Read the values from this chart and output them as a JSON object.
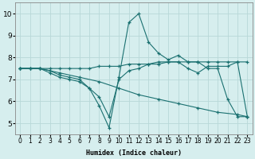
{
  "xlabel": "Humidex (Indice chaleur)",
  "ylabel": "",
  "xlim": [
    -0.5,
    23.5
  ],
  "ylim": [
    4.5,
    10.5
  ],
  "xticks": [
    0,
    1,
    2,
    3,
    4,
    5,
    6,
    7,
    8,
    9,
    10,
    11,
    12,
    13,
    14,
    15,
    16,
    17,
    18,
    19,
    20,
    21,
    22,
    23
  ],
  "yticks": [
    5,
    6,
    7,
    8,
    9,
    10
  ],
  "bg_color": "#d6eeee",
  "line_color": "#1a7070",
  "grid_color": "#b8d8d8",
  "lines": [
    {
      "x": [
        0,
        1,
        2,
        3,
        4,
        5,
        6,
        7,
        8,
        9,
        10,
        11,
        12,
        13,
        14,
        15,
        16,
        17,
        18,
        19,
        20,
        21,
        22,
        23
      ],
      "y": [
        7.5,
        7.5,
        7.5,
        7.4,
        7.2,
        7.1,
        7.0,
        6.6,
        5.8,
        4.8,
        7.1,
        9.6,
        10.0,
        8.7,
        8.2,
        7.9,
        8.1,
        7.8,
        7.8,
        7.5,
        7.5,
        6.1,
        5.3,
        5.3
      ]
    },
    {
      "x": [
        0,
        1,
        2,
        3,
        4,
        5,
        6,
        7,
        8,
        9,
        10,
        11,
        12,
        13,
        14,
        15,
        16,
        17,
        18,
        19,
        20,
        21,
        22,
        23
      ],
      "y": [
        7.5,
        7.5,
        7.5,
        7.5,
        7.5,
        7.5,
        7.5,
        7.5,
        7.6,
        7.6,
        7.6,
        7.7,
        7.7,
        7.7,
        7.8,
        7.8,
        7.8,
        7.8,
        7.8,
        7.8,
        7.8,
        7.8,
        7.8,
        7.8
      ]
    },
    {
      "x": [
        0,
        1,
        2,
        3,
        4,
        5,
        6,
        7,
        8,
        9,
        10,
        11,
        12,
        13,
        14,
        15,
        16,
        17,
        18,
        19,
        20,
        21,
        22,
        23
      ],
      "y": [
        7.5,
        7.5,
        7.5,
        7.3,
        7.1,
        7.0,
        6.9,
        6.6,
        6.2,
        5.3,
        7.0,
        7.4,
        7.5,
        7.7,
        7.7,
        7.8,
        7.8,
        7.5,
        7.3,
        7.6,
        7.6,
        7.6,
        7.8,
        5.3
      ]
    },
    {
      "x": [
        0,
        2,
        4,
        6,
        8,
        10,
        12,
        14,
        16,
        18,
        20,
        22,
        23
      ],
      "y": [
        7.5,
        7.5,
        7.3,
        7.1,
        6.9,
        6.6,
        6.3,
        6.1,
        5.9,
        5.7,
        5.5,
        5.4,
        5.3
      ]
    }
  ]
}
